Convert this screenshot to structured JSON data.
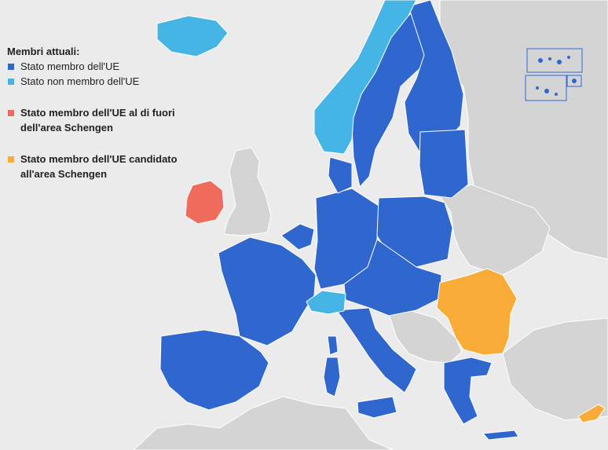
{
  "legend": {
    "title": "Membri attuali:",
    "items": [
      {
        "id": "eu-member",
        "label": "Stato membro dell'UE",
        "color": "#2f67cf",
        "bold": false
      },
      {
        "id": "non-eu",
        "label": "Stato non membro dell'UE",
        "color": "#45b5e6",
        "bold": false
      },
      {
        "id": "outside-schengen",
        "label": "Stato membro dell'UE al di fuori dell'area Schengen",
        "color": "#ef6b5c",
        "bold": true
      },
      {
        "id": "candidate",
        "label": "Stato membro dell'UE candidato all'area Schengen",
        "color": "#f9ab37",
        "bold": true
      }
    ]
  },
  "map": {
    "colors": {
      "sea": "#ebebeb",
      "land": "#d4d4d4",
      "border": "#ffffff",
      "eu_member": "#2f67cf",
      "non_eu": "#45b5e6",
      "outside_schengen": "#ef6b5c",
      "candidate": "#f9ab37"
    }
  }
}
